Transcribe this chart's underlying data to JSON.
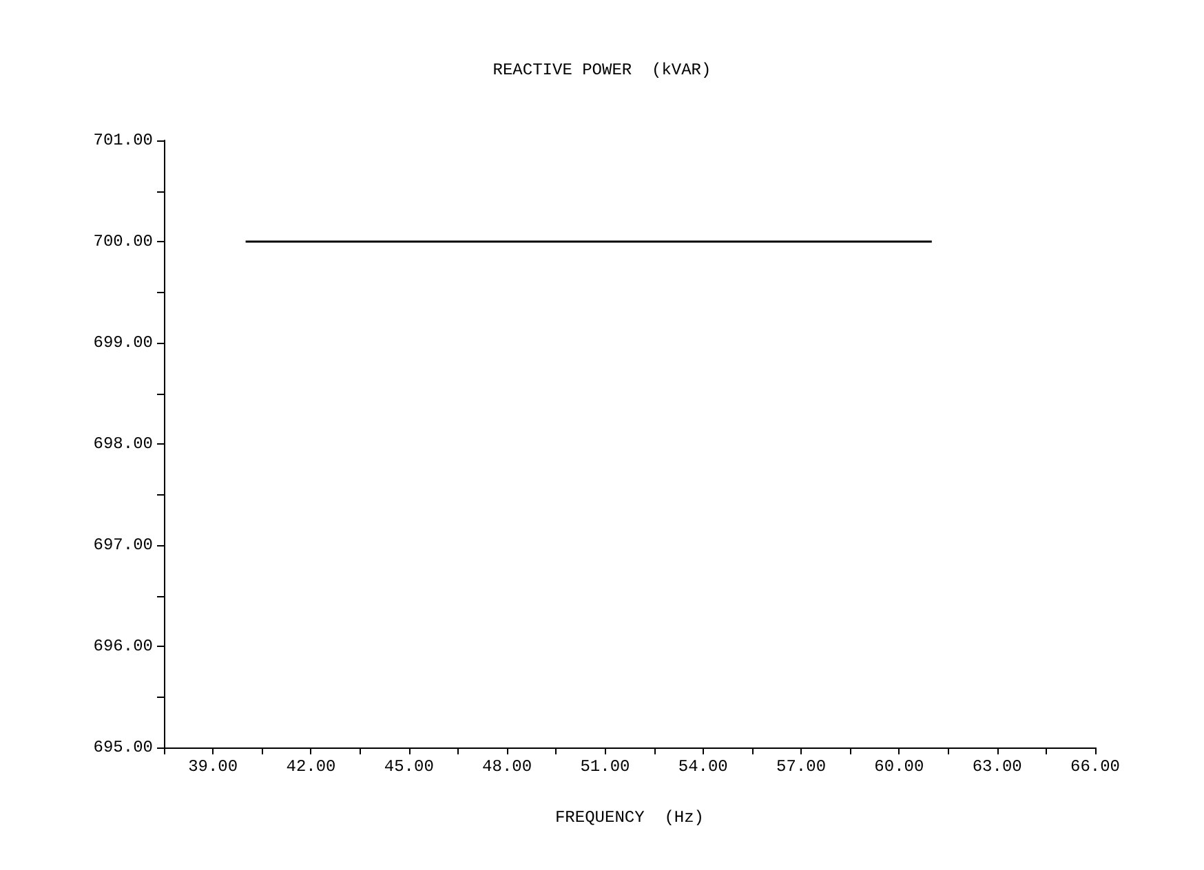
{
  "chart_data": {
    "type": "line",
    "title": "REACTIVE POWER  (kVAR)",
    "xlabel": "FREQUENCY  (Hz)",
    "x": [
      40,
      61
    ],
    "series": [
      {
        "color": "#000000",
        "values": [
          700,
          700
        ]
      }
    ],
    "xlim": [
      37.5,
      66
    ],
    "xticks": [
      {
        "value": 37.5,
        "label": null
      },
      {
        "value": 39,
        "label": "39.00"
      },
      {
        "value": 40.5,
        "label": null
      },
      {
        "value": 42,
        "label": "42.00"
      },
      {
        "value": 43.5,
        "label": null
      },
      {
        "value": 45,
        "label": "45.00"
      },
      {
        "value": 46.5,
        "label": null
      },
      {
        "value": 48,
        "label": "48.00"
      },
      {
        "value": 49.5,
        "label": null
      },
      {
        "value": 51,
        "label": "51.00"
      },
      {
        "value": 52.5,
        "label": null
      },
      {
        "value": 54,
        "label": "54.00"
      },
      {
        "value": 55.5,
        "label": null
      },
      {
        "value": 57,
        "label": "57.00"
      },
      {
        "value": 58.5,
        "label": null
      },
      {
        "value": 60,
        "label": "60.00"
      },
      {
        "value": 61.5,
        "label": null
      },
      {
        "value": 63,
        "label": "63.00"
      },
      {
        "value": 64.5,
        "label": null
      },
      {
        "value": 66,
        "label": "66.00"
      }
    ],
    "ylim": [
      695,
      701
    ],
    "yticks": [
      {
        "value": 695,
        "label": "695.00"
      },
      {
        "value": 695.5,
        "label": null
      },
      {
        "value": 696,
        "label": "696.00"
      },
      {
        "value": 696.5,
        "label": null
      },
      {
        "value": 697,
        "label": "697.00"
      },
      {
        "value": 697.5,
        "label": null
      },
      {
        "value": 698,
        "label": "698.00"
      },
      {
        "value": 698.5,
        "label": null
      },
      {
        "value": 699,
        "label": "699.00"
      },
      {
        "value": 699.5,
        "label": null
      },
      {
        "value": 700,
        "label": "700.00"
      },
      {
        "value": 700.5,
        "label": null
      },
      {
        "value": 701,
        "label": "701.00"
      }
    ],
    "grid": false,
    "marker": "none",
    "line_style": "solid"
  }
}
